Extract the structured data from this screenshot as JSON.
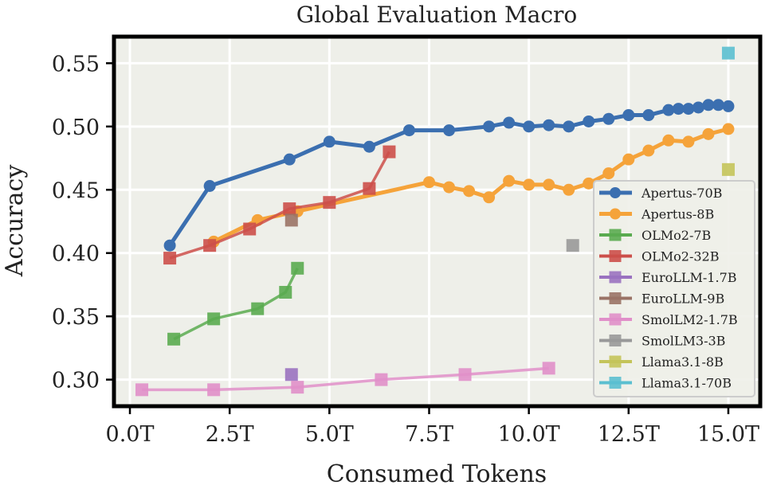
{
  "chart_data": {
    "type": "line",
    "title": "Global Evaluation Macro",
    "xlabel": "Consumed Tokens",
    "ylabel": "Accuracy",
    "xlim": [
      -0.4,
      15.8
    ],
    "ylim": [
      0.279,
      0.571
    ],
    "xticks": [
      0,
      2.5,
      5,
      7.5,
      10,
      12.5,
      15
    ],
    "xtick_labels": [
      "0.0T",
      "2.5T",
      "5.0T",
      "7.5T",
      "10.0T",
      "12.5T",
      "15.0T"
    ],
    "yticks": [
      0.3,
      0.35,
      0.4,
      0.45,
      0.5,
      0.55
    ],
    "ytick_labels": [
      "0.30",
      "0.35",
      "0.40",
      "0.45",
      "0.50",
      "0.55"
    ],
    "grid": true,
    "background": "#eeefe9",
    "legend_position": "lower-right",
    "series": [
      {
        "name": "Apertus-70B",
        "color": "#3b6fb0",
        "marker": "circle",
        "x": [
          1,
          2,
          4,
          5,
          6,
          7,
          8,
          9,
          9.5,
          10,
          10.5,
          11,
          11.5,
          12,
          12.5,
          13,
          13.5,
          13.75,
          14,
          14.25,
          14.5,
          14.75,
          15
        ],
        "y": [
          0.406,
          0.453,
          0.474,
          0.488,
          0.484,
          0.497,
          0.497,
          0.5,
          0.503,
          0.5,
          0.501,
          0.5,
          0.504,
          0.506,
          0.509,
          0.509,
          0.513,
          0.514,
          0.514,
          0.515,
          0.517,
          0.517,
          0.516
        ]
      },
      {
        "name": "Apertus-8B",
        "color": "#f5a33a",
        "marker": "circle",
        "x": [
          2.1,
          3.2,
          4.2,
          7.5,
          8,
          8.5,
          9,
          9.5,
          10,
          10.5,
          11,
          11.5,
          12,
          12.5,
          13,
          13.5,
          14,
          14.5,
          15
        ],
        "y": [
          0.409,
          0.426,
          0.433,
          0.456,
          0.452,
          0.449,
          0.444,
          0.457,
          0.454,
          0.454,
          0.45,
          0.455,
          0.463,
          0.474,
          0.481,
          0.489,
          0.488,
          0.494,
          0.498
        ]
      },
      {
        "name": "OLMo2-7B",
        "color": "#5aab50",
        "marker": "square",
        "x": [
          1.1,
          2.1,
          3.2,
          3.9,
          4.2
        ],
        "y": [
          0.332,
          0.348,
          0.356,
          0.369,
          0.388
        ]
      },
      {
        "name": "OLMo2-32B",
        "color": "#cc4f4a",
        "marker": "square",
        "x": [
          1,
          2,
          3,
          4,
          5,
          6,
          6.5
        ],
        "y": [
          0.396,
          0.406,
          0.419,
          0.435,
          0.44,
          0.451,
          0.48
        ]
      },
      {
        "name": "EuroLLM-1.7B",
        "color": "#9a72c0",
        "marker": "square",
        "x": [
          4.05
        ],
        "y": [
          0.304
        ]
      },
      {
        "name": "EuroLLM-9B",
        "color": "#9a7366",
        "marker": "square",
        "x": [
          4.05
        ],
        "y": [
          0.426
        ]
      },
      {
        "name": "SmolLM2-1.7B",
        "color": "#e08fc9",
        "marker": "square",
        "x": [
          0.3,
          2.1,
          4.2,
          6.3,
          8.4,
          10.5
        ],
        "y": [
          0.292,
          0.292,
          0.294,
          0.3,
          0.304,
          0.309
        ]
      },
      {
        "name": "SmolLM3-3B",
        "color": "#999999",
        "marker": "square",
        "x": [
          11.1
        ],
        "y": [
          0.406
        ]
      },
      {
        "name": "Llama3.1-8B",
        "color": "#c4c45a",
        "marker": "square",
        "x": [
          15
        ],
        "y": [
          0.466
        ]
      },
      {
        "name": "Llama3.1-70B",
        "color": "#5bbfd0",
        "marker": "square",
        "x": [
          15
        ],
        "y": [
          0.558
        ]
      }
    ]
  }
}
